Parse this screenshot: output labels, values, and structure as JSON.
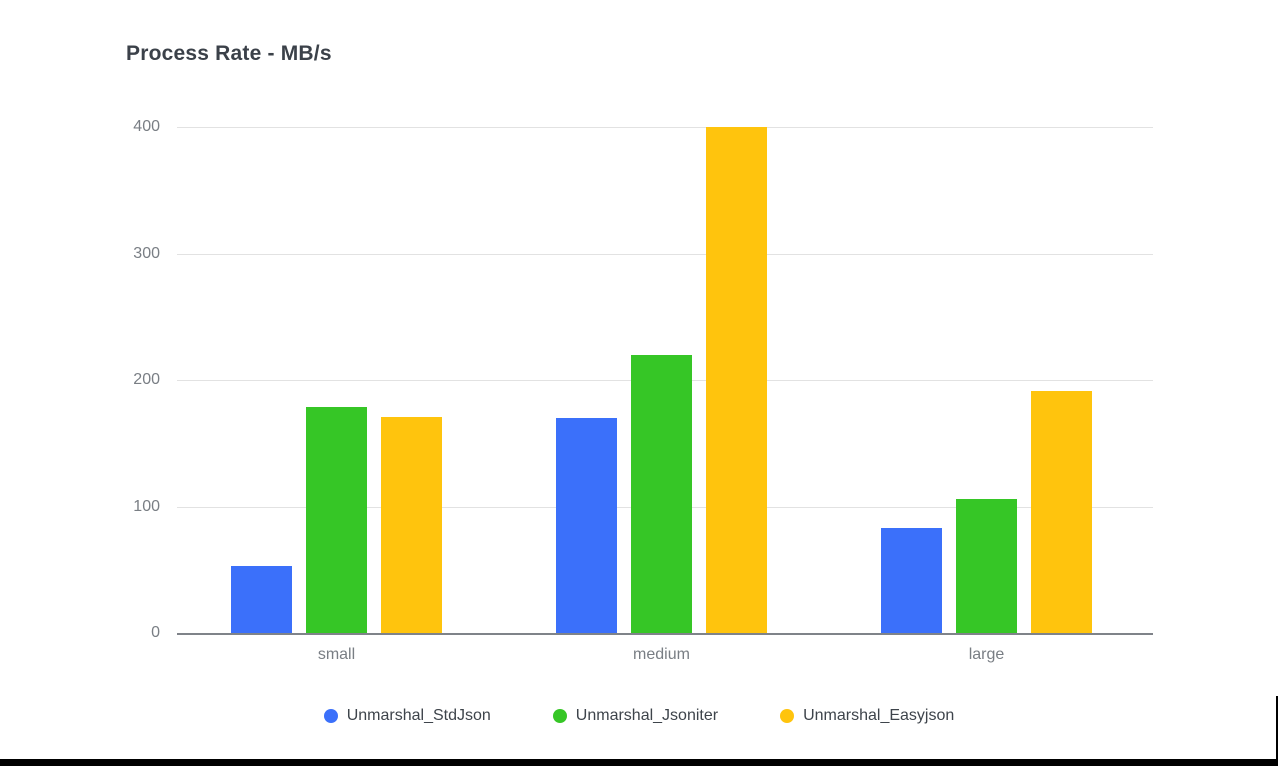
{
  "page": {
    "background_color": "#ffffff",
    "frame_color": "#000000"
  },
  "chart_data": {
    "type": "bar",
    "title": "Process Rate - MB/s",
    "categories": [
      "small",
      "medium",
      "large"
    ],
    "series": [
      {
        "name": "Unmarshal_StdJson",
        "color": "#3b70fa",
        "values": [
          53,
          170,
          83
        ]
      },
      {
        "name": "Unmarshal_Jsoniter",
        "color": "#36c626",
        "values": [
          179,
          220,
          106
        ]
      },
      {
        "name": "Unmarshal_Easyjson",
        "color": "#ffc40d",
        "values": [
          171,
          400,
          191
        ]
      }
    ],
    "xlabel": "",
    "ylabel": "",
    "ylim": [
      0,
      400
    ],
    "yticks": [
      0,
      100,
      200,
      300,
      400
    ],
    "grid": true,
    "legend_position": "bottom",
    "gridline_color": "#e2e2e2",
    "axis_line_color": "#7f8389",
    "axis_label_color": "#797e84",
    "title_color": "#3b4149"
  }
}
